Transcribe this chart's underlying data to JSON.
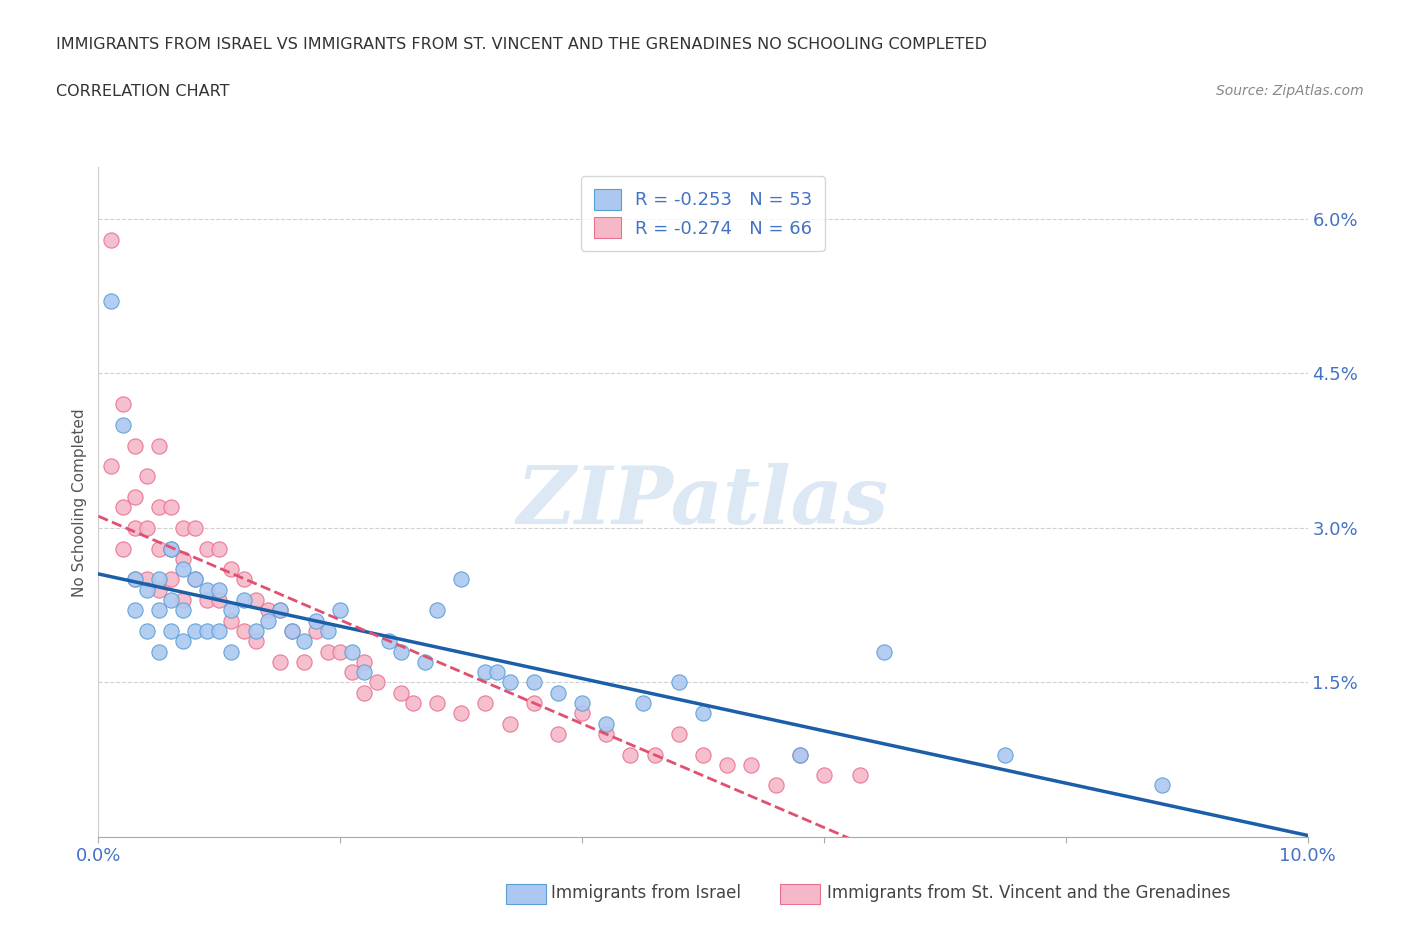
{
  "title_line1": "IMMIGRANTS FROM ISRAEL VS IMMIGRANTS FROM ST. VINCENT AND THE GRENADINES NO SCHOOLING COMPLETED",
  "title_line2": "CORRELATION CHART",
  "source_text": "Source: ZipAtlas.com",
  "ylabel": "No Schooling Completed",
  "xlim": [
    0.0,
    0.1
  ],
  "ylim": [
    0.0,
    0.065
  ],
  "xticks": [
    0.0,
    0.02,
    0.04,
    0.06,
    0.08,
    0.1
  ],
  "xticklabels": [
    "0.0%",
    "",
    "",
    "",
    "",
    "10.0%"
  ],
  "yticks": [
    0.0,
    0.015,
    0.03,
    0.045,
    0.06
  ],
  "yticklabels": [
    "",
    "1.5%",
    "3.0%",
    "4.5%",
    "6.0%"
  ],
  "israel_R": -0.253,
  "israel_N": 53,
  "vincent_R": -0.274,
  "vincent_N": 66,
  "israel_color": "#adc8f0",
  "israel_edge_color": "#5a9fd4",
  "israel_line_color": "#1a5fa8",
  "vincent_color": "#f5b8c8",
  "vincent_edge_color": "#e87090",
  "vincent_line_color": "#e05070",
  "watermark_color": "#dde8f5",
  "grid_color": "#d0d0d0",
  "tick_color": "#4472c4",
  "israel_x": [
    0.001,
    0.002,
    0.003,
    0.003,
    0.004,
    0.004,
    0.005,
    0.005,
    0.005,
    0.006,
    0.006,
    0.006,
    0.007,
    0.007,
    0.007,
    0.008,
    0.008,
    0.009,
    0.009,
    0.01,
    0.01,
    0.011,
    0.011,
    0.012,
    0.013,
    0.014,
    0.015,
    0.016,
    0.017,
    0.018,
    0.019,
    0.02,
    0.021,
    0.022,
    0.024,
    0.025,
    0.027,
    0.028,
    0.03,
    0.032,
    0.033,
    0.034,
    0.036,
    0.038,
    0.04,
    0.042,
    0.045,
    0.048,
    0.05,
    0.058,
    0.065,
    0.075,
    0.088
  ],
  "israel_y": [
    0.052,
    0.04,
    0.025,
    0.022,
    0.024,
    0.02,
    0.025,
    0.022,
    0.018,
    0.028,
    0.023,
    0.02,
    0.026,
    0.022,
    0.019,
    0.025,
    0.02,
    0.024,
    0.02,
    0.024,
    0.02,
    0.022,
    0.018,
    0.023,
    0.02,
    0.021,
    0.022,
    0.02,
    0.019,
    0.021,
    0.02,
    0.022,
    0.018,
    0.016,
    0.019,
    0.018,
    0.017,
    0.022,
    0.025,
    0.016,
    0.016,
    0.015,
    0.015,
    0.014,
    0.013,
    0.011,
    0.013,
    0.015,
    0.012,
    0.008,
    0.018,
    0.008,
    0.005
  ],
  "vincent_x": [
    0.001,
    0.001,
    0.002,
    0.002,
    0.002,
    0.003,
    0.003,
    0.003,
    0.003,
    0.004,
    0.004,
    0.004,
    0.005,
    0.005,
    0.005,
    0.005,
    0.006,
    0.006,
    0.006,
    0.007,
    0.007,
    0.007,
    0.008,
    0.008,
    0.009,
    0.009,
    0.01,
    0.01,
    0.011,
    0.011,
    0.012,
    0.012,
    0.013,
    0.013,
    0.014,
    0.015,
    0.015,
    0.016,
    0.017,
    0.018,
    0.019,
    0.02,
    0.021,
    0.022,
    0.022,
    0.023,
    0.025,
    0.026,
    0.028,
    0.03,
    0.032,
    0.034,
    0.036,
    0.038,
    0.04,
    0.042,
    0.044,
    0.046,
    0.048,
    0.05,
    0.052,
    0.054,
    0.056,
    0.058,
    0.06,
    0.063
  ],
  "vincent_y": [
    0.058,
    0.036,
    0.042,
    0.028,
    0.032,
    0.038,
    0.033,
    0.03,
    0.025,
    0.035,
    0.03,
    0.025,
    0.038,
    0.032,
    0.028,
    0.024,
    0.032,
    0.028,
    0.025,
    0.03,
    0.027,
    0.023,
    0.03,
    0.025,
    0.028,
    0.023,
    0.028,
    0.023,
    0.026,
    0.021,
    0.025,
    0.02,
    0.023,
    0.019,
    0.022,
    0.022,
    0.017,
    0.02,
    0.017,
    0.02,
    0.018,
    0.018,
    0.016,
    0.017,
    0.014,
    0.015,
    0.014,
    0.013,
    0.013,
    0.012,
    0.013,
    0.011,
    0.013,
    0.01,
    0.012,
    0.01,
    0.008,
    0.008,
    0.01,
    0.008,
    0.007,
    0.007,
    0.005,
    0.008,
    0.006,
    0.006
  ]
}
